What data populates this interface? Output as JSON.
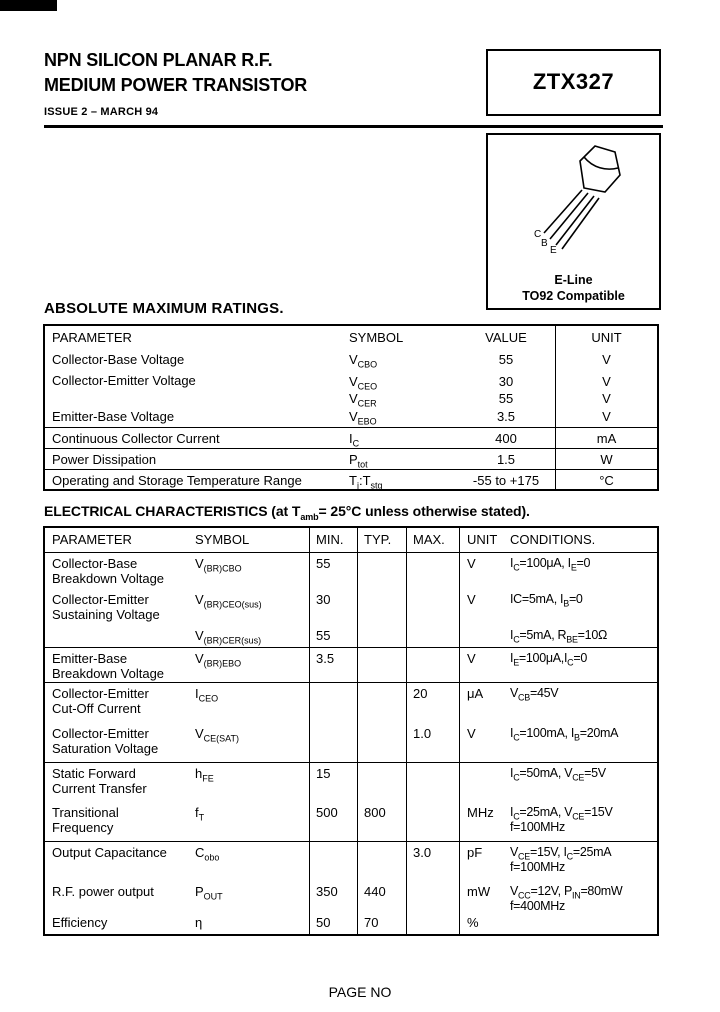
{
  "header": {
    "title_line1": "NPN SILICON PLANAR R.F.",
    "title_line2": "MEDIUM POWER TRANSISTOR",
    "issue": "ISSUE 2 – MARCH 94",
    "part_number": "ZTX327"
  },
  "package": {
    "name": "E-Line",
    "compat": "TO92 Compatible",
    "pins": [
      "C",
      "B",
      "E"
    ]
  },
  "abs_max": {
    "title": "ABSOLUTE MAXIMUM RATINGS.",
    "headers": {
      "parameter": "PARAMETER",
      "symbol": "SYMBOL",
      "value": "VALUE",
      "unit": "UNIT"
    },
    "rows": [
      {
        "parameter": "Collector-Base Voltage",
        "symbol": "V<sub>CBO</sub>",
        "value": "55",
        "unit": "V"
      },
      {
        "parameter": "Collector-Emitter Voltage",
        "symbol": "V<sub>CEO</sub><br>V<sub>CER</sub>",
        "value": "30<br>55",
        "unit": "V<br>V"
      },
      {
        "parameter": "Emitter-Base Voltage",
        "symbol": "V<sub>EBO</sub>",
        "value": "3.5",
        "unit": "V"
      },
      {
        "parameter": "Continuous Collector Current",
        "symbol": "I<sub>C</sub>",
        "value": "400",
        "unit": "mA"
      },
      {
        "parameter": "Power Dissipation",
        "symbol": "P<sub>tot</sub>",
        "value": "1.5",
        "unit": "W"
      },
      {
        "parameter": "Operating and Storage Temperature Range",
        "symbol": "T<sub>j</sub>:T<sub>stg</sub>",
        "value": "-55 to +175",
        "unit": "°C"
      }
    ]
  },
  "elec": {
    "title": "ELECTRICAL CHARACTERISTICS (at T<sub>amb</sub>= 25°C unless otherwise stated).",
    "headers": {
      "parameter": "PARAMETER",
      "symbol": "SYMBOL",
      "min": "MIN.",
      "typ": "TYP.",
      "max": "MAX.",
      "unit": "UNIT",
      "conditions": "CONDITIONS."
    },
    "rows": [
      {
        "parameter": "Collector-Base<br>Breakdown Voltage",
        "symbol": "V<sub>(BR)CBO</sub>",
        "min": "55",
        "typ": "",
        "max": "",
        "unit": "V",
        "conditions": "I<sub>C</sub>=100μA, I<sub>E</sub>=0"
      },
      {
        "parameter": "Collector-Emitter<br>Sustaining  Voltage",
        "symbol": "V<sub>(BR)CEO(sus)</sub>",
        "min": "30",
        "typ": "",
        "max": "",
        "unit": "V",
        "conditions": "IC=5mA,  I<sub>B</sub>=0"
      },
      {
        "parameter": "",
        "symbol": "V<sub>(BR)CER(sus)</sub>",
        "min": "55",
        "typ": "",
        "max": "",
        "unit": "",
        "conditions": "I<sub>C</sub>=5mA, R<sub>BE</sub>=10Ω"
      },
      {
        "parameter": "Emitter-Base<br>Breakdown Voltage",
        "symbol": "V<sub>(BR)EBO</sub>",
        "min": "3.5",
        "typ": "",
        "max": "",
        "unit": "V",
        "conditions": "I<sub>E</sub>=100μA,I<sub>C</sub>=0"
      },
      {
        "parameter": "Collector-Emitter<br>Cut-Off Current",
        "symbol": "I<sub>CEO</sub>",
        "min": "",
        "typ": "",
        "max": "20",
        "unit": "μA",
        "conditions": "V<sub>CB</sub>=45V"
      },
      {
        "parameter": "Collector-Emitter<br>Saturation Voltage",
        "symbol": "V<sub>CE(SAT)</sub>",
        "min": "",
        "typ": "",
        "max": "1.0",
        "unit": "V",
        "conditions": "I<sub>C</sub>=100mA, I<sub>B</sub>=20mA"
      },
      {
        "parameter": "Static Forward<br>Current Transfer",
        "symbol": "h<sub>FE</sub>",
        "min": "15",
        "typ": "",
        "max": "",
        "unit": "",
        "conditions": "I<sub>C</sub>=50mA, V<sub>CE</sub>=5V"
      },
      {
        "parameter": "Transitional<br>Frequency",
        "symbol": "f<sub>T</sub>",
        "min": "500",
        "typ": "800",
        "max": "",
        "unit": "MHz",
        "conditions": "I<sub>C</sub>=25mA, V<sub>CE</sub>=15V<br>f=100MHz"
      },
      {
        "parameter": "Output Capacitance",
        "symbol": "C<sub>obo</sub>",
        "min": "",
        "typ": "",
        "max": "3.0",
        "unit": "pF",
        "conditions": "V<sub>CE</sub>=15V, I<sub>C</sub>=25mA<br>f=100MHz"
      },
      {
        "parameter": "R.F. power output",
        "symbol": "P<sub>OUT</sub>",
        "min": "350",
        "typ": "440",
        "max": "",
        "unit": "mW",
        "conditions": "V<sub>CC</sub>=12V, P<sub>IN</sub>=80mW<br>f=400MHz"
      },
      {
        "parameter": "Efficiency",
        "symbol": "η",
        "min": "50",
        "typ": "70",
        "max": "",
        "unit": "%",
        "conditions": ""
      }
    ]
  },
  "footer": {
    "page_label": "PAGE NO"
  }
}
